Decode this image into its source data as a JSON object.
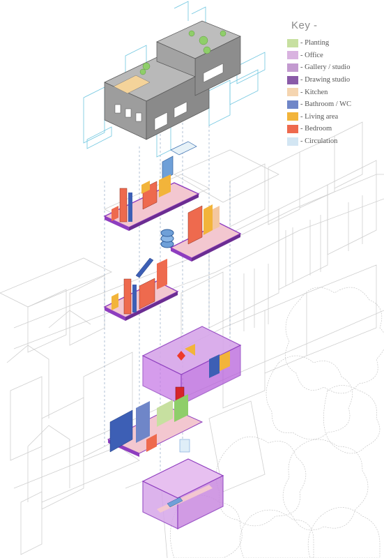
{
  "key": {
    "title": "Key -",
    "items": [
      {
        "label": "- Planting",
        "color": "#c7e0a0"
      },
      {
        "label": "- Office",
        "color": "#d9b3e0"
      },
      {
        "label": "- Gallery / studio",
        "color": "#c39ad0"
      },
      {
        "label": "- Drawing studio",
        "color": "#8a5ba8"
      },
      {
        "label": "- Kitchen",
        "color": "#f5d5b0"
      },
      {
        "label": "- Bathroom / WC",
        "color": "#6f86c8"
      },
      {
        "label": "- Living area",
        "color": "#f2b43a"
      },
      {
        "label": "- Bedroom",
        "color": "#ee6a4e"
      },
      {
        "label": "- Circulation",
        "color": "#d3e6f3"
      }
    ]
  },
  "colors": {
    "context_line": "#c8c8c8",
    "circulation": "#6fc6e0",
    "slab": "#8e3dbf",
    "floor": "#f3c7d0",
    "roof_block": "#8c8c8c",
    "glass": "#c77be6"
  }
}
